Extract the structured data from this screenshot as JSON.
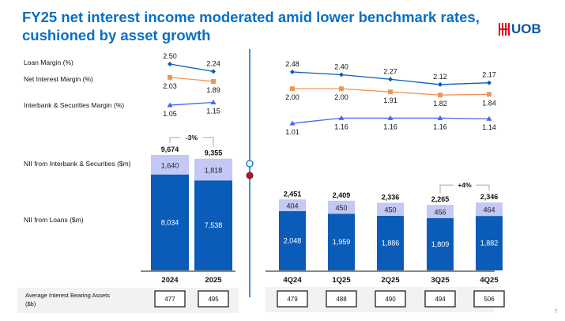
{
  "header": {
    "title_line1": "FY25 net interest income moderated amid lower benchmark rates,",
    "title_line2": "cushioned by asset growth",
    "logo": "UOB"
  },
  "page_number": "7",
  "legend": {
    "loan_margin": "Loan Margin (%)",
    "nim": "Net Interest Margin (%)",
    "ibsm": "Interbank & Securities Margin (%)",
    "nii_ibs": "NII from Interbank & Securities ($m)",
    "nii_loans": "NII from Loans ($m)",
    "aiba": "Average Interest Bearing Assets ($b)"
  },
  "colors": {
    "loans": "#0a5cb8",
    "interbank": "#c3c8f5",
    "loan_margin": "#0a5cb8",
    "nim": "#f0955a",
    "ibsm": "#4466ee",
    "accent": "#0a6fc2"
  },
  "chart_data": [
    {
      "type": "bar",
      "name": "annual",
      "stacked": true,
      "categories": [
        "2024",
        "2025"
      ],
      "series": [
        {
          "name": "NII from Loans ($m)",
          "values": [
            8034,
            7538
          ]
        },
        {
          "name": "NII from Interbank & Securities ($m)",
          "values": [
            1640,
            1818
          ]
        }
      ],
      "totals": [
        "9,674",
        "9,355"
      ],
      "loan_labels": [
        "8,034",
        "7,538"
      ],
      "ibs_labels": [
        "1,640",
        "1,818"
      ],
      "change": "-3%",
      "lines": [
        {
          "name": "Loan Margin (%)",
          "values": [
            2.5,
            2.24
          ],
          "labels": [
            "2.50",
            "2.24"
          ]
        },
        {
          "name": "Net Interest Margin (%)",
          "values": [
            2.03,
            1.89
          ],
          "labels": [
            "2.03",
            "1.89"
          ]
        },
        {
          "name": "Interbank & Securities Margin (%)",
          "values": [
            1.05,
            1.15
          ],
          "labels": [
            "1.05",
            "1.15"
          ]
        }
      ],
      "aiba": [
        "477",
        "495"
      ]
    },
    {
      "type": "bar",
      "name": "quarterly",
      "stacked": true,
      "categories": [
        "4Q24",
        "1Q25",
        "2Q25",
        "3Q25",
        "4Q25"
      ],
      "series": [
        {
          "name": "NII from Loans ($m)",
          "values": [
            2048,
            1959,
            1886,
            1809,
            1882
          ]
        },
        {
          "name": "NII from Interbank & Securities ($m)",
          "values": [
            404,
            450,
            450,
            456,
            464
          ]
        }
      ],
      "totals": [
        "2,451",
        "2,409",
        "2,336",
        "2,265",
        "2,346"
      ],
      "loan_labels": [
        "2,048",
        "1,959",
        "1,886",
        "1,809",
        "1,882"
      ],
      "ibs_labels": [
        "404",
        "450",
        "450",
        "456",
        "464"
      ],
      "change": "+4%",
      "lines": [
        {
          "name": "Loan Margin (%)",
          "values": [
            2.48,
            2.4,
            2.27,
            2.12,
            2.17
          ],
          "labels": [
            "2.48",
            "2.40",
            "2.27",
            "2.12",
            "2.17"
          ]
        },
        {
          "name": "Net Interest Margin (%)",
          "values": [
            2.0,
            2.0,
            1.91,
            1.82,
            1.84
          ],
          "labels": [
            "2.00",
            "2.00",
            "1.91",
            "1.82",
            "1.84"
          ]
        },
        {
          "name": "Interbank & Securities Margin (%)",
          "values": [
            1.01,
            1.16,
            1.16,
            1.16,
            1.14
          ],
          "labels": [
            "1.01",
            "1.16",
            "1.16",
            "1.16",
            "1.14"
          ]
        }
      ],
      "aiba": [
        "479",
        "488",
        "490",
        "494",
        "506"
      ]
    }
  ]
}
